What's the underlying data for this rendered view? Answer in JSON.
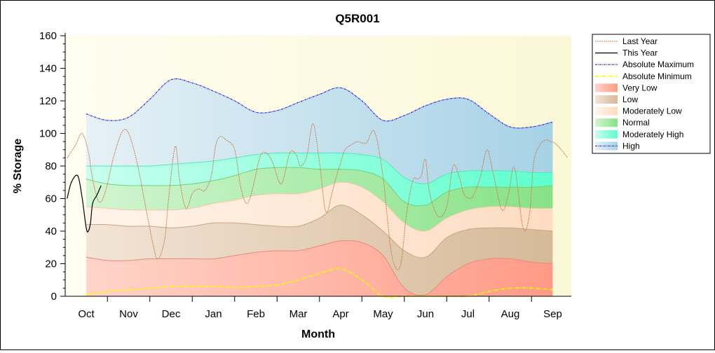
{
  "chart_data": {
    "type": "area",
    "title": "Q5R001",
    "xlabel": "Month",
    "ylabel": "% Storage",
    "ylim": [
      0,
      160
    ],
    "yticks": [
      0,
      20,
      40,
      60,
      80,
      100,
      120,
      140,
      160
    ],
    "categories": [
      "Oct",
      "Nov",
      "Dec",
      "Jan",
      "Feb",
      "Mar",
      "Apr",
      "May",
      "Jun",
      "Jul",
      "Aug",
      "Sep"
    ],
    "legend_position": "right",
    "grid": false,
    "colors": {
      "plot_background": "#fdfbe3",
      "last_year": "#c8804a",
      "this_year": "#000000",
      "absolute_maximum": "#2a2adf",
      "absolute_minimum": "#ffff00",
      "very_low": "#ffa898",
      "low": "#dcc3a6",
      "moderately_low": "#fde3cf",
      "normal": "#9ae89a",
      "moderately_high": "#80ffd8",
      "high": "#b4d8ea"
    },
    "band_x": [
      0.0,
      0.5,
      1.0,
      1.5,
      2.0,
      2.5,
      3.0,
      3.5,
      4.0,
      4.5,
      5.0,
      5.5,
      6.0,
      6.5,
      7.0,
      7.5,
      8.0,
      8.5,
      9.0,
      9.5,
      10.0,
      10.5,
      11.0
    ],
    "bands": {
      "absolute_minimum": [
        1,
        3,
        4,
        5,
        6,
        6,
        6,
        5.5,
        6,
        7,
        10,
        14,
        17,
        10,
        0,
        0,
        0,
        0,
        0,
        3,
        5,
        5,
        4
      ],
      "very_low": [
        24,
        22,
        22,
        23,
        23,
        23,
        23,
        25,
        27,
        28,
        28,
        31,
        34,
        33,
        25,
        5,
        1,
        12,
        20,
        23,
        23,
        21,
        20
      ],
      "low": [
        44,
        44,
        43,
        43,
        42,
        43,
        45,
        45,
        44,
        43,
        43,
        48,
        56,
        50,
        40,
        28,
        24,
        36,
        41,
        42,
        42,
        41,
        40
      ],
      "moderately_low": [
        55,
        54,
        53,
        53,
        53,
        54,
        57,
        59,
        62,
        63,
        63,
        66,
        70,
        67,
        58,
        45,
        40,
        48,
        53,
        55,
        55,
        54,
        54
      ],
      "normal": [
        72,
        69,
        68,
        68,
        68,
        69,
        71,
        74,
        78,
        79,
        79,
        78,
        78,
        77,
        72,
        58,
        56,
        64,
        67,
        67,
        67,
        67,
        68
      ],
      "moderately_high": [
        80,
        80,
        80,
        80,
        81,
        82,
        83,
        85,
        87,
        88,
        88,
        88,
        88,
        87,
        84,
        73,
        69,
        75,
        77,
        77,
        77,
        76,
        76
      ],
      "high": [
        112,
        108,
        110,
        121,
        133,
        131,
        126,
        120,
        113,
        114,
        119,
        124,
        128,
        120,
        108,
        111,
        117,
        121,
        121,
        112,
        104,
        104,
        107
      ]
    },
    "series": [
      {
        "name": "Last Year",
        "style": "dotted",
        "x": [
          -0.45,
          -0.25,
          -0.1,
          0.05,
          0.15,
          0.3,
          0.45,
          0.65,
          0.85,
          1.0,
          1.2,
          1.4,
          1.6,
          1.7,
          1.85,
          1.95,
          2.1,
          2.2,
          2.35,
          2.5,
          2.65,
          2.8,
          2.95,
          3.05,
          3.15,
          3.3,
          3.5,
          3.65,
          3.8,
          3.95,
          4.1,
          4.25,
          4.4,
          4.6,
          4.8,
          4.95,
          5.05,
          5.2,
          5.35,
          5.5,
          5.65,
          5.8,
          5.9,
          6.0,
          6.1,
          6.25,
          6.4,
          6.6,
          6.8,
          7.0,
          7.2,
          7.4,
          7.55,
          7.7,
          7.8,
          7.9,
          8.0,
          8.1,
          8.3,
          8.5,
          8.65,
          8.8,
          8.9,
          9.05,
          9.15,
          9.3,
          9.45,
          9.6,
          9.8,
          9.95,
          10.1,
          10.3,
          10.45,
          10.55,
          10.7,
          10.85,
          10.95,
          11.05,
          11.2,
          11.35
        ],
        "y": [
          85,
          93,
          100,
          89,
          72,
          58,
          64,
          86,
          101,
          100,
          82,
          55,
          29,
          23,
          35,
          62,
          92,
          72,
          54,
          63,
          66,
          65,
          74,
          92,
          98,
          96,
          90,
          66,
          57,
          69,
          86,
          88,
          82,
          69,
          88,
          87,
          80,
          86,
          106,
          82,
          52,
          64,
          74,
          82,
          90,
          93,
          95,
          94,
          101,
          73,
          26,
          18,
          50,
          71,
          72,
          74,
          84,
          63,
          49,
          55,
          80,
          73,
          63,
          60,
          63,
          74,
          90,
          75,
          53,
          62,
          79,
          42,
          50,
          82,
          93,
          96,
          95,
          94,
          90,
          85
        ]
      },
      {
        "name": "This Year",
        "style": "solid",
        "x": [
          -0.45,
          -0.35,
          -0.2,
          -0.1,
          0.0,
          0.05,
          0.1,
          0.15,
          0.25,
          0.35
        ],
        "y": [
          60,
          70,
          74,
          61,
          42,
          40,
          45,
          57,
          62,
          68
        ]
      },
      {
        "name": "Absolute Maximum",
        "style": "dash-dot"
      },
      {
        "name": "Absolute Minimum",
        "style": "dash-dot"
      },
      {
        "name": "Very Low",
        "style": "area"
      },
      {
        "name": "Low",
        "style": "area"
      },
      {
        "name": "Moderately Low",
        "style": "area"
      },
      {
        "name": "Normal",
        "style": "area"
      },
      {
        "name": "Moderately High",
        "style": "area"
      },
      {
        "name": "High",
        "style": "area"
      }
    ]
  }
}
